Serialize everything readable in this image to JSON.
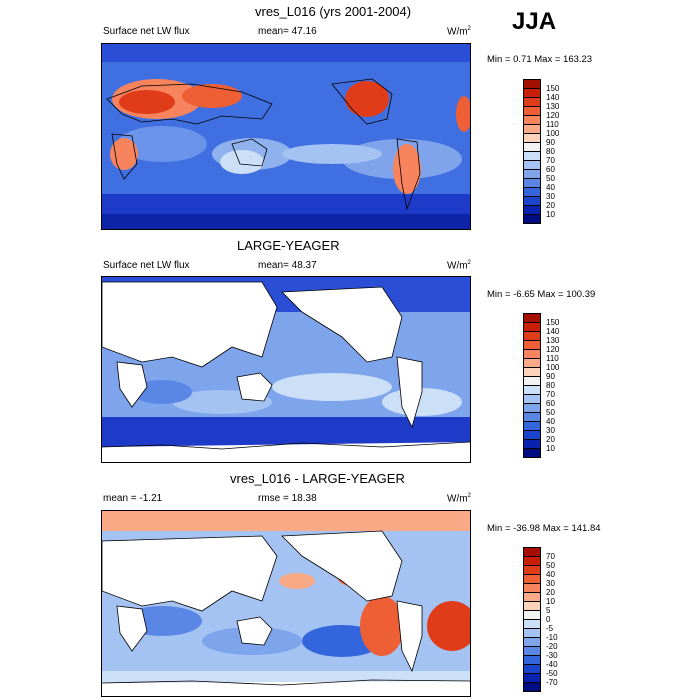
{
  "season": "JJA",
  "panels": [
    {
      "title": "vres_L016 (yrs 2001-2004)",
      "left_label": "Surface net LW flux",
      "center_label": "mean=  47.16",
      "units": "W/m",
      "units_sup": "2",
      "minmax": "Min =   0.71 Max = 163.23",
      "colorbar": {
        "labels": [
          "150",
          "140",
          "130",
          "120",
          "110",
          "100",
          "90",
          "80",
          "70",
          "60",
          "50",
          "40",
          "30",
          "20",
          "10"
        ],
        "colors": [
          "#a50f00",
          "#c81e05",
          "#e03c1a",
          "#ef5f35",
          "#f7845c",
          "#fbaa87",
          "#fdd3bb",
          "#f2f2f2",
          "#cbdff7",
          "#a4c2f2",
          "#7ea4ec",
          "#5a87e6",
          "#3366dd",
          "#1b44cc",
          "#0a22b0",
          "#000d80"
        ]
      }
    },
    {
      "title": "LARGE-YEAGER",
      "left_label": "Surface net LW flux",
      "center_label": "mean=  48.37",
      "units": "W/m",
      "units_sup": "2",
      "minmax": "Min =  -6.65 Max = 100.39",
      "colorbar": {
        "labels": [
          "150",
          "140",
          "130",
          "120",
          "110",
          "100",
          "90",
          "80",
          "70",
          "60",
          "50",
          "40",
          "30",
          "20",
          "10"
        ],
        "colors": [
          "#a50f00",
          "#c81e05",
          "#e03c1a",
          "#ef5f35",
          "#f7845c",
          "#fbaa87",
          "#fdd3bb",
          "#f2f2f2",
          "#cbdff7",
          "#a4c2f2",
          "#7ea4ec",
          "#5a87e6",
          "#3366dd",
          "#1b44cc",
          "#0a22b0",
          "#000d80"
        ]
      }
    },
    {
      "title": "vres_L016 - LARGE-YEAGER",
      "left_label": "mean =  -1.21",
      "center_label": "rmse =  18.38",
      "units": "W/m",
      "units_sup": "2",
      "minmax": "Min = -36.98 Max = 141.84",
      "colorbar": {
        "labels": [
          "70",
          "50",
          "40",
          "30",
          "20",
          "10",
          "5",
          "0",
          "-5",
          "-10",
          "-20",
          "-30",
          "-40",
          "-50",
          "-70"
        ],
        "colors": [
          "#a50f00",
          "#c81e05",
          "#e03c1a",
          "#ef5f35",
          "#f7845c",
          "#fbaa87",
          "#fdd3bb",
          "#f2f2f2",
          "#cbdff7",
          "#a4c2f2",
          "#7ea4ec",
          "#5a87e6",
          "#3366dd",
          "#1b44cc",
          "#0a22b0",
          "#000d80"
        ]
      }
    }
  ]
}
